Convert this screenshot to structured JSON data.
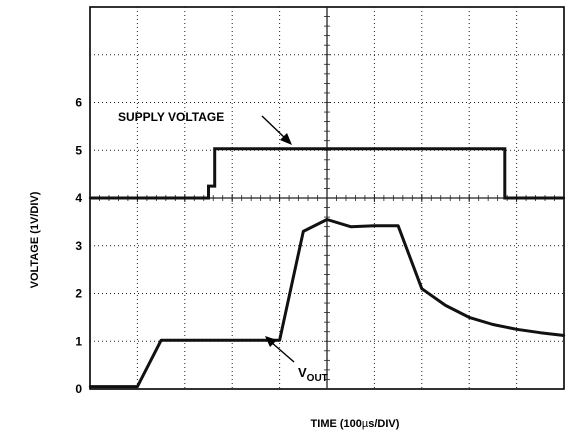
{
  "chart_data": [
    {
      "type": "line",
      "xlabel": "TIME (100µs/DIV)",
      "ylabel": "",
      "x_unit": "µs",
      "xlim": [
        0,
        1000
      ],
      "ylim": [
        4,
        8
      ],
      "y_tick_labels": [
        "4",
        "5",
        "6"
      ],
      "grid": true,
      "series": [
        {
          "name": "SUPPLY VOLTAGE",
          "x": [
            0,
            250,
            250,
            263,
            263,
            875,
            875,
            1000
          ],
          "y": [
            4,
            4,
            4.25,
            4.25,
            5.03,
            5.03,
            4,
            4
          ]
        }
      ],
      "annotations": [
        {
          "text": "SUPPLY VOLTAGE",
          "x": 300,
          "y": 5.03
        }
      ]
    },
    {
      "type": "line",
      "xlabel": "TIME (100µs/DIV)",
      "ylabel": "VOLTAGE (1V/DIV)",
      "x_unit": "µs",
      "xlim": [
        0,
        1000
      ],
      "ylim": [
        0,
        4
      ],
      "y_tick_labels": [
        "0",
        "1",
        "2",
        "3",
        "4"
      ],
      "grid": true,
      "series": [
        {
          "name": "VOUT",
          "x": [
            0,
            50,
            100,
            150,
            200,
            250,
            300,
            350,
            400,
            450,
            500,
            550,
            600,
            650,
            700,
            750,
            800,
            850,
            900,
            950,
            1000
          ],
          "y": [
            0.05,
            0.05,
            0.05,
            1.02,
            1.02,
            1.02,
            1.02,
            1.02,
            1.02,
            3.3,
            3.55,
            3.4,
            3.42,
            3.42,
            2.1,
            1.75,
            1.5,
            1.35,
            1.25,
            1.18,
            1.12
          ]
        }
      ],
      "annotations": [
        {
          "text": "VOUT",
          "x": 480,
          "y": 0.95
        }
      ]
    }
  ],
  "axis_labels": {
    "x": "TIME (100",
    "x_mu": "µ",
    "x_tail": "s/DIV)",
    "y": "VOLTAGE (1V/DIV)"
  },
  "labels": {
    "supply": "SUPPLY VOLTAGE",
    "vout_v": "V",
    "vout_sub": "OUT"
  },
  "colors": {
    "trace": "#111111",
    "grid": "#222222"
  }
}
